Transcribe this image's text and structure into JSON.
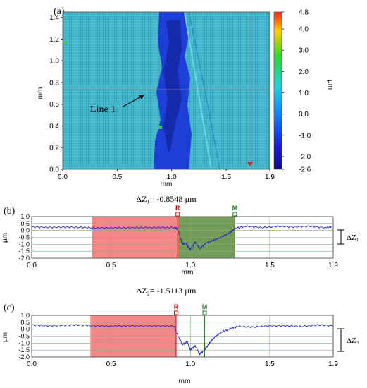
{
  "figure": {
    "panel_a": {
      "label": "(a)",
      "xlabel": "mm",
      "ylabel": "mm",
      "x_ticks": [
        "0.0",
        "0.5",
        "1.0",
        "1.5",
        "1.9"
      ],
      "y_ticks": [
        "0.0",
        "0.2",
        "0.4",
        "0.6",
        "0.8",
        "1.0",
        "1.2",
        "1.4"
      ],
      "line_annotation": "Line 1",
      "colorbar": {
        "unit": "µm",
        "ticks": [
          "4.8",
          "4.0",
          "3.0",
          "2.0",
          "1.0",
          "0.0",
          "-1.0",
          "-2.0",
          "-2.6"
        ],
        "colors": [
          "#ff2020",
          "#ffd000",
          "#30d830",
          "#20d0e0",
          "#1080ff",
          "#1a1adc",
          "#0c0c8a"
        ]
      }
    },
    "dz1_label": "ΔZ₁= -0.8548 µm",
    "dz2_label": "ΔZ₂= -1.5113 µm",
    "panel_b_label": "(b)",
    "panel_c_label": "(c)",
    "dz1_side": "ΔZ₁",
    "dz2_side": "ΔZ₂",
    "profile_xlabel": "mm",
    "profile_ylabel": "µm",
    "profile_x_ticks": [
      "0.0",
      "0.5",
      "1.0",
      "1.5",
      "1.9"
    ],
    "profile_y_ticks": [
      "1.0",
      "0.5",
      "0.0",
      "-0.5",
      "-1.0",
      "-1.5",
      "-2.0"
    ],
    "marker_r": "R",
    "marker_m": "M"
  },
  "colors": {
    "profile_line": "#2222cc",
    "reference_fill": "#f27272",
    "measure_fill_b": "#5a8a3a",
    "marker_r": "#dd0000",
    "marker_m": "#1a7a1a",
    "map_base": "#3fb4c8",
    "map_trench": "#1e3ed8"
  },
  "chart_data": [
    {
      "type": "heatmap",
      "title": "(a)",
      "xlabel": "mm",
      "ylabel": "mm",
      "xlim": [
        0,
        1.9
      ],
      "ylim": [
        0,
        1.45
      ],
      "colorbar_range": [
        -2.6,
        4.8
      ],
      "colorbar_unit": "µm",
      "annotation": "Line 1",
      "line_y": 0.72,
      "trench_x_range": [
        0.85,
        1.15
      ]
    },
    {
      "type": "line",
      "title": "(b)",
      "xlabel": "mm",
      "ylabel": "µm",
      "xlim": [
        0,
        1.9
      ],
      "ylim": [
        -2.0,
        1.0
      ],
      "reference_region": [
        0.38,
        0.92
      ],
      "measure_region": [
        0.92,
        1.28
      ],
      "marker_R_x": 0.92,
      "marker_M_x": 1.28,
      "delta_z": -0.8548,
      "series": [
        {
          "values_x": [
            0.0,
            0.1,
            0.2,
            0.3,
            0.4,
            0.5,
            0.6,
            0.7,
            0.8,
            0.9,
            0.92,
            0.95,
            0.97,
            1.0,
            1.03,
            1.06,
            1.1,
            1.15,
            1.2,
            1.25,
            1.28,
            1.35,
            1.45,
            1.55,
            1.65,
            1.75,
            1.85,
            1.9
          ],
          "values_y": [
            0.25,
            0.22,
            0.24,
            0.22,
            0.18,
            0.18,
            0.19,
            0.2,
            0.21,
            0.2,
            0.1,
            -1.0,
            -0.9,
            -1.4,
            -0.85,
            -1.3,
            -0.9,
            -0.7,
            -0.45,
            -0.15,
            0.15,
            0.3,
            0.2,
            0.3,
            0.25,
            0.3,
            0.2,
            0.3
          ]
        }
      ]
    },
    {
      "type": "line",
      "title": "(c)",
      "xlabel": "mm",
      "ylabel": "µm",
      "xlim": [
        0,
        1.9
      ],
      "ylim": [
        -2.0,
        1.0
      ],
      "reference_region": [
        0.37,
        0.91
      ],
      "marker_R_x": 0.91,
      "marker_M_x": 1.09,
      "delta_z": -1.5113,
      "series": [
        {
          "values_x": [
            0.0,
            0.1,
            0.2,
            0.3,
            0.4,
            0.5,
            0.6,
            0.7,
            0.8,
            0.9,
            0.91,
            0.95,
            0.98,
            1.0,
            1.03,
            1.06,
            1.09,
            1.12,
            1.15,
            1.2,
            1.25,
            1.3,
            1.4,
            1.5,
            1.6,
            1.7,
            1.8,
            1.9
          ],
          "values_y": [
            0.3,
            0.25,
            0.28,
            0.3,
            0.25,
            0.22,
            0.25,
            0.24,
            0.25,
            0.22,
            -0.2,
            -1.1,
            -0.9,
            -1.5,
            -1.2,
            -1.8,
            -1.5,
            -1.0,
            -0.6,
            -0.2,
            0.05,
            0.2,
            0.15,
            0.25,
            0.25,
            0.2,
            0.3,
            0.25
          ]
        }
      ]
    }
  ]
}
